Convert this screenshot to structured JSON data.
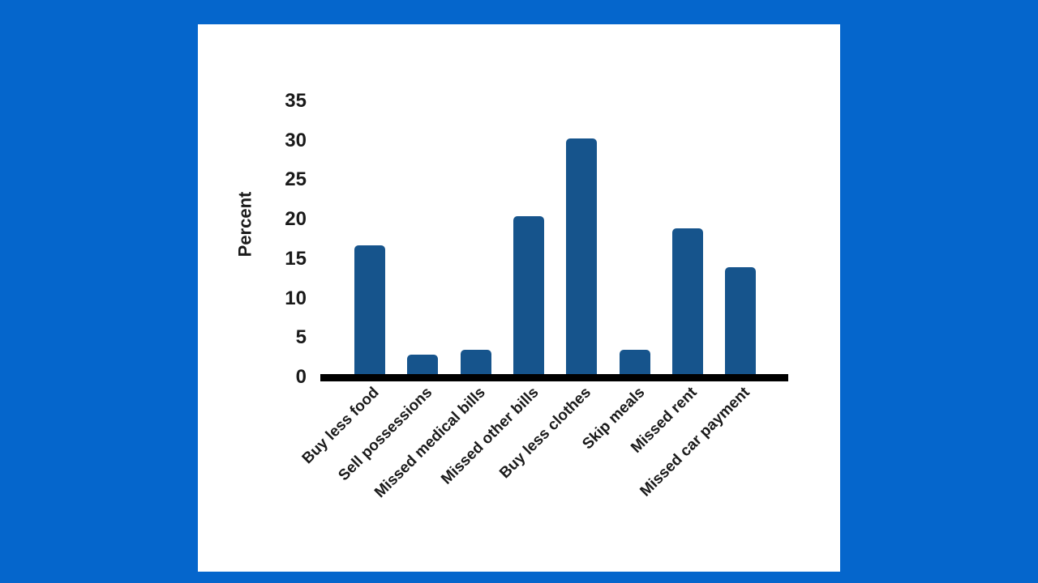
{
  "chart_data": {
    "type": "bar",
    "title": "",
    "xlabel": "",
    "ylabel": "Percent",
    "ylim": [
      0,
      35
    ],
    "yticks": [
      0,
      5,
      10,
      15,
      20,
      25,
      30,
      35
    ],
    "grid": false,
    "legend": null,
    "categories": [
      "Buy less food",
      "Sell possessions",
      "Missed medical bills",
      "Missed other bills",
      "Buy less clothes",
      "Skip meals",
      "Missed rent",
      "Missed car payment"
    ],
    "values": [
      16.4,
      2.6,
      3.2,
      20.1,
      30.0,
      3.2,
      18.6,
      13.6
    ],
    "bar_color": "#16548c"
  },
  "colors": {
    "background": "#0566cc",
    "panel": "#ffffff",
    "bar": "#16548c",
    "axis": "#000000"
  }
}
